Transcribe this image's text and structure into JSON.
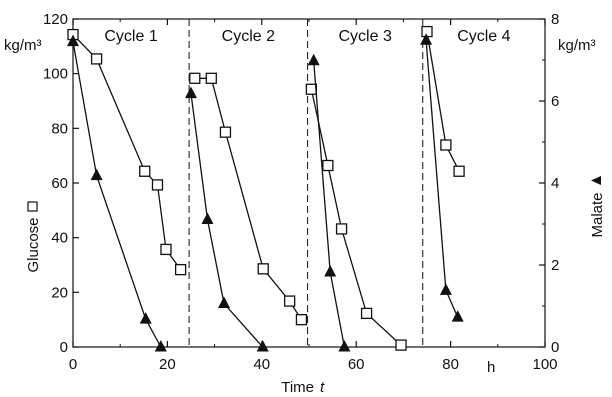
{
  "chart_data": {
    "type": "line",
    "x_axis": {
      "label": "Time",
      "label_symbol": "t",
      "unit": "h",
      "range": [
        0,
        100
      ],
      "ticks": [
        "0",
        "20",
        "40",
        "60",
        "80",
        "100"
      ]
    },
    "y_left_axis": {
      "label": "Glucose",
      "unit": "kg/m³",
      "range": [
        0,
        120
      ],
      "ticks": [
        "0",
        "20",
        "40",
        "60",
        "80",
        "100",
        "120"
      ]
    },
    "y_right_axis": {
      "label": "Malate",
      "unit": "kg/m³",
      "range": [
        0,
        8
      ],
      "ticks": [
        "0",
        "2",
        "4",
        "6",
        "8"
      ]
    },
    "cycles": [
      {
        "label": "Cycle 1",
        "start": 0,
        "end": 24.6
      },
      {
        "label": "Cycle 2",
        "start": 24.6,
        "end": 49.7
      },
      {
        "label": "Cycle 3",
        "start": 49.7,
        "end": 74.1
      },
      {
        "label": "Cycle 4",
        "start": 74.1,
        "end": 100
      }
    ],
    "series": [
      {
        "name": "Glucose",
        "axis": "left",
        "marker": "open-square",
        "segments": [
          [
            [
              0,
              114.3
            ],
            [
              5.0,
              105.4
            ],
            [
              15.2,
              64.3
            ],
            [
              17.9,
              59.3
            ],
            [
              19.7,
              35.7
            ],
            [
              22.8,
              28.3
            ]
          ],
          [
            [
              25.8,
              98.3
            ],
            [
              29.3,
              98.3
            ],
            [
              32.3,
              78.6
            ],
            [
              40.3,
              28.6
            ],
            [
              45.9,
              16.8
            ],
            [
              48.4,
              10.0
            ]
          ],
          [
            [
              50.5,
              94.3
            ],
            [
              54.0,
              66.4
            ],
            [
              56.9,
              43.2
            ],
            [
              62.2,
              12.3
            ],
            [
              69.5,
              0.7
            ]
          ],
          [
            [
              75.0,
              115.4
            ],
            [
              79.0,
              73.9
            ],
            [
              81.8,
              64.3
            ]
          ]
        ]
      },
      {
        "name": "Malate",
        "axis": "right",
        "marker": "filled-triangle",
        "segments": [
          [
            [
              0,
              7.45
            ],
            [
              5.0,
              4.18
            ],
            [
              15.4,
              0.68
            ],
            [
              18.6,
              0.0
            ]
          ],
          [
            [
              25.0,
              6.18
            ],
            [
              28.5,
              3.11
            ],
            [
              32.0,
              1.06
            ],
            [
              40.2,
              0.0
            ]
          ],
          [
            [
              51.0,
              6.98
            ],
            [
              54.5,
              1.83
            ],
            [
              57.5,
              0.0
            ]
          ],
          [
            [
              74.8,
              7.48
            ],
            [
              79.0,
              1.38
            ],
            [
              81.5,
              0.73
            ]
          ]
        ]
      }
    ]
  }
}
